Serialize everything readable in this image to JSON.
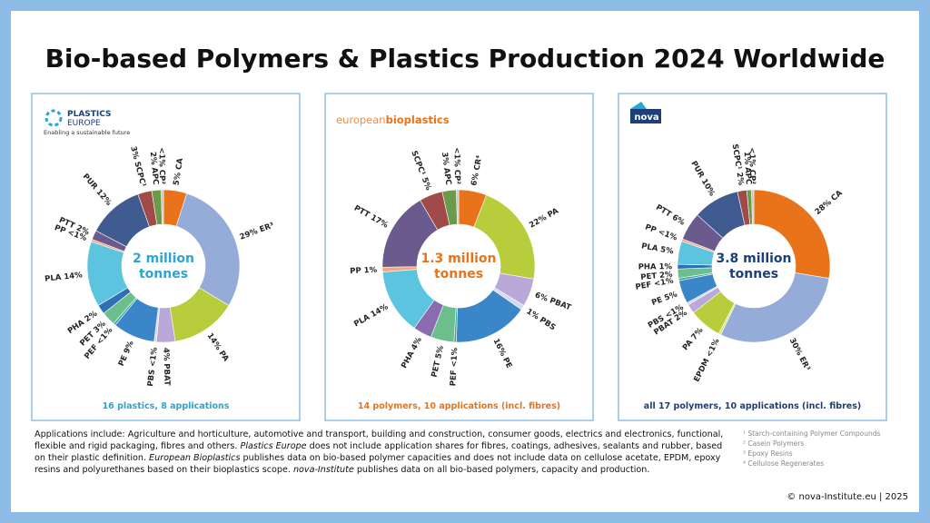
{
  "title": "Bio-based Polymers & Plastics Production 2024 Worldwide",
  "chart_data": [
    {
      "type": "pie",
      "logo": [
        "PLASTICS",
        "EUROPE"
      ],
      "tagline": "Enabling a sustainable future",
      "center_label": [
        "2 million",
        "tonnes"
      ],
      "caption": "16 plastics, 8 applications",
      "accent": "#2aa6d2",
      "labels": [
        "5% CA",
        "29% ER³",
        "14% PA",
        "4% PBAT",
        "PBS <1%",
        "PE 9%",
        "PEF <1%",
        "PET 3%",
        "PHA 2%",
        "PLA 14%",
        "PP <1%",
        "PTT 2%",
        "PUR 12%",
        "3% SCPC¹",
        "2% APC",
        "<1% CP²"
      ],
      "values": [
        5,
        29,
        14,
        4,
        0.5,
        9,
        0.5,
        3,
        2,
        14,
        0.5,
        2,
        12,
        3,
        2,
        0.5
      ],
      "colors": [
        "#e8731a",
        "#95acd9",
        "#b7cd3c",
        "#b9a8d8",
        "#d4d8ee",
        "#3a86c8",
        "#3aa59c",
        "#6cbf8c",
        "#2f6fb3",
        "#5cc4df",
        "#f3a57c",
        "#6b5a8e",
        "#3f5b8f",
        "#a14a4a",
        "#6a9a4a",
        "#c4c4c4"
      ]
    },
    {
      "type": "pie",
      "logo": [
        "european",
        "bioplastics"
      ],
      "center_label": [
        "1.3 million",
        "tonnes"
      ],
      "caption": "14 polymers, 10 applications (incl. fibres)",
      "accent": "#e8731a",
      "labels": [
        "6% CR⁴",
        "22% PA",
        "6% PBAT",
        "1% PBS",
        "16% PE",
        "PEF <1%",
        "PET 5%",
        "PHA 4%",
        "PLA 14%",
        "PP 1%",
        "PTT 17%",
        "SCPC¹ 5%",
        "3% APC",
        "<1% CP²"
      ],
      "values": [
        6,
        22,
        6,
        1,
        16,
        0.5,
        5,
        4,
        14,
        1,
        17,
        5,
        3,
        0.5
      ],
      "colors": [
        "#e8731a",
        "#b7cd3c",
        "#b9a8d8",
        "#d4d8ee",
        "#3a86c8",
        "#3aa59c",
        "#6cbf8c",
        "#8a6bb0",
        "#5cc4df",
        "#f3a57c",
        "#6b5a8e",
        "#a14a4a",
        "#6a9a4a",
        "#c4c4c4"
      ]
    },
    {
      "type": "pie",
      "logo": [
        "nova"
      ],
      "center_label": [
        "3.8 million",
        "tonnes"
      ],
      "caption": "all 17 polymers, 10 applications (incl. fibres)",
      "accent": "#1c3f7a",
      "labels": [
        "28% CA",
        "30% ER³",
        "EPDM <1%",
        "PA 7%",
        "PBAT 2%",
        "PBS <1%",
        "PE 5%",
        "PEF <1%",
        "PET 2%",
        "PHA 1%",
        "PLA 5%",
        "PP <1%",
        "PTT 6%",
        "PUR 10%",
        "SCPC¹ 2%",
        "1% APC",
        "<1% CP²"
      ],
      "values": [
        28,
        30,
        0.5,
        7,
        2,
        0.5,
        5,
        0.5,
        2,
        1,
        5,
        0.5,
        6,
        10,
        2,
        1,
        0.5
      ],
      "colors": [
        "#e8731a",
        "#95acd9",
        "#d9e58a",
        "#b7cd3c",
        "#b9a8d8",
        "#d4d8ee",
        "#3a86c8",
        "#3aa59c",
        "#6cbf8c",
        "#2f6fb3",
        "#5cc4df",
        "#f3a57c",
        "#6b5a8e",
        "#3f5b8f",
        "#a14a4a",
        "#6a9a4a",
        "#c4c4c4"
      ]
    }
  ],
  "notes": [
    {
      "text": "Applications include: Agriculture and horticulture, automotive and transport, building and construction, consumer goods, electrics and electronics, functional, flexible and rigid packaging, fibres and others. ",
      "italic": false
    },
    {
      "text": "Plastics Europe",
      "italic": true
    },
    {
      "text": " does not include application shares for fibres, coatings, adhesives, sealants and rubber, based on their plastic definition. ",
      "italic": false
    },
    {
      "text": "European Bioplastics",
      "italic": true
    },
    {
      "text": " publishes data on bio-based polymer capacities and does not include data on cellulose acetate, EPDM, epoxy resins and polyurethanes based on their bioplastics scope. ",
      "italic": false
    },
    {
      "text": "nova-Institute",
      "italic": true
    },
    {
      "text": " publishes data on all bio-based polymers, capacity and production.",
      "italic": false
    }
  ],
  "footnotes": [
    "¹ Starch-containing Polymer Compounds",
    "² Casein Polymers",
    "³ Epoxy Resins",
    "⁴ Cellulose Regenerates"
  ],
  "copyright": "© nova-Institute.eu | 2025"
}
